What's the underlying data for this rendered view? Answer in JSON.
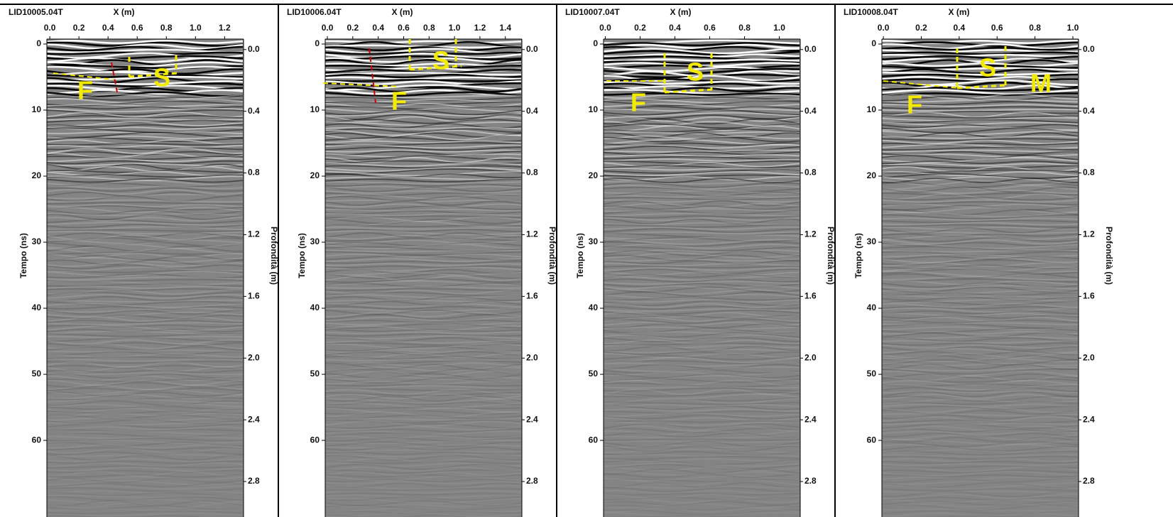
{
  "chart_data": [
    {
      "type": "radargram",
      "title": "LID10005.04T",
      "x_label": "X (m)",
      "y_label": "Tempo (ns)",
      "y2_label": "Profondità (m)",
      "xlim": [
        -0.02,
        1.33
      ],
      "xticks": [
        {
          "value": 0,
          "label": "0.0"
        },
        0.2,
        0.4,
        0.6,
        0.8,
        {
          "value": 1,
          "label": "1.0"
        },
        1.2
      ],
      "ylim": [
        -0.75,
        71.6
      ],
      "yticks": [
        0,
        10,
        20,
        30,
        40,
        50,
        60
      ],
      "y2lim": [
        -0.068,
        3.03
      ],
      "y2ticks": [
        {
          "value": 0,
          "label": "0.0"
        },
        0.4,
        0.8,
        1.2,
        1.6,
        {
          "value": 2,
          "label": "2.0"
        },
        2.4,
        2.8
      ],
      "annotations": [
        "F",
        "S"
      ]
    },
    {
      "type": "radargram",
      "title": "LID10006.04T",
      "x_label": "X (m)",
      "y_label": "Tempo (ns)",
      "y2_label": "Profondità (m)",
      "xlim": [
        -0.017,
        1.53
      ],
      "xticks": [
        {
          "value": 0,
          "label": "0.0"
        },
        0.2,
        0.4,
        0.6,
        0.8,
        {
          "value": 1,
          "label": "1.0"
        },
        1.2,
        1.4
      ],
      "ylim": [
        -0.75,
        71.6
      ],
      "yticks": [
        0,
        10,
        20,
        30,
        40,
        50,
        60
      ],
      "y2lim": [
        -0.068,
        3.03
      ],
      "y2ticks": [
        {
          "value": 0,
          "label": "0.0"
        },
        0.4,
        0.8,
        1.2,
        1.6,
        {
          "value": 2,
          "label": "2.0"
        },
        2.4,
        2.8
      ],
      "annotations": [
        "F",
        "S"
      ]
    },
    {
      "type": "radargram",
      "title": "LID10007.04T",
      "x_label": "X (m)",
      "y_label": "Tempo (ns)",
      "y2_label": "Profondità (m)",
      "xlim": [
        -0.01,
        1.12
      ],
      "xticks": [
        {
          "value": 0,
          "label": "0.0"
        },
        0.2,
        0.4,
        0.6,
        0.8,
        {
          "value": 1,
          "label": "1.0"
        }
      ],
      "ylim": [
        -0.75,
        71.6
      ],
      "yticks": [
        0,
        10,
        20,
        30,
        40,
        50,
        60
      ],
      "y2lim": [
        -0.068,
        3.03
      ],
      "y2ticks": [
        {
          "value": 0,
          "label": "0.0"
        },
        0.4,
        0.8,
        1.2,
        1.6,
        {
          "value": 2,
          "label": "2.0"
        },
        2.4,
        2.8
      ],
      "annotations": [
        "F",
        "S"
      ]
    },
    {
      "type": "radargram",
      "title": "LID10008.04T",
      "x_label": "X (m)",
      "y_label": "Tempo (ns)",
      "y2_label": "Profondità (m)",
      "xlim": [
        -0.008,
        1.03
      ],
      "xticks": [
        {
          "value": 0,
          "label": "0.0"
        },
        0.2,
        0.4,
        0.6,
        0.8,
        {
          "value": 1,
          "label": "1.0"
        }
      ],
      "ylim": [
        -0.75,
        71.6
      ],
      "yticks": [
        0,
        10,
        20,
        30,
        40,
        50,
        60
      ],
      "y2lim": [
        -0.068,
        3.03
      ],
      "y2ticks": [
        {
          "value": 0,
          "label": "0.0"
        },
        0.4,
        0.8,
        1.2,
        1.6,
        {
          "value": 2,
          "label": "2.0"
        },
        2.4,
        2.8
      ],
      "annotations": [
        "F",
        "S",
        "M"
      ]
    }
  ]
}
